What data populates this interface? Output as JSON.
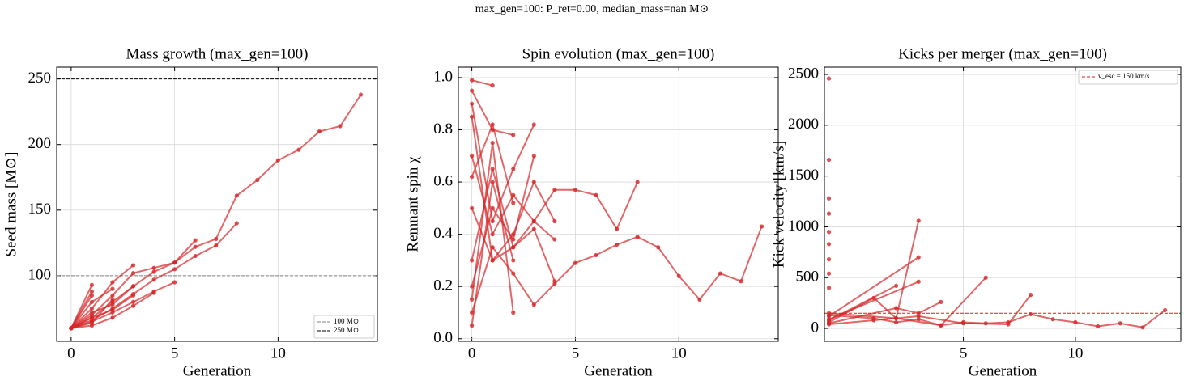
{
  "title": "max_gen=100: P_ret=0.00, median_mass=nan M⊙",
  "chart_data": [
    {
      "type": "line",
      "title": "Mass growth (max_gen=100)",
      "xlabel": "Generation",
      "ylabel": "Seed mass [M⊙]",
      "xlim": [
        -0.7,
        14.8
      ],
      "ylim": [
        50,
        259
      ],
      "xticks": [
        0,
        5,
        10
      ],
      "yticks": [
        100,
        150,
        200,
        250
      ],
      "grid": true,
      "legend": "lower right",
      "hlines": [
        {
          "y": 100,
          "color": "#808080",
          "label": "100 M⊙"
        },
        {
          "y": 250,
          "color": "#000000",
          "label": "250 M⊙"
        }
      ],
      "series": [
        {
          "color": "#d62728",
          "x": [
            0,
            1,
            2,
            3,
            4,
            5,
            6,
            7,
            8,
            9,
            10,
            11,
            12,
            13,
            14
          ],
          "values": [
            60,
            68,
            80,
            92,
            103,
            110,
            122,
            128,
            161,
            173,
            188,
            196,
            210,
            214,
            238
          ]
        },
        {
          "color": "#d62728",
          "x": [
            0,
            1,
            2,
            3,
            4,
            5,
            6,
            7,
            8
          ],
          "values": [
            60,
            66,
            75,
            86,
            97,
            105,
            115,
            123,
            140
          ]
        },
        {
          "color": "#d62728",
          "x": [
            0,
            1
          ],
          "values": [
            60,
            93
          ]
        },
        {
          "color": "#d62728",
          "x": [
            0,
            1
          ],
          "values": [
            60,
            88
          ]
        },
        {
          "color": "#d62728",
          "x": [
            0,
            1,
            2,
            3
          ],
          "values": [
            60,
            75,
            95,
            108
          ]
        },
        {
          "color": "#d62728",
          "x": [
            0,
            1,
            2,
            3,
            4,
            5,
            6
          ],
          "values": [
            60,
            70,
            85,
            102,
            106,
            110,
            127
          ]
        },
        {
          "color": "#d62728",
          "x": [
            0,
            1,
            2,
            3,
            4,
            5
          ],
          "values": [
            60,
            65,
            72,
            80,
            88,
            95
          ]
        },
        {
          "color": "#d62728",
          "x": [
            0,
            1,
            2
          ],
          "values": [
            60,
            80,
            90
          ]
        },
        {
          "color": "#d62728",
          "x": [
            0,
            1
          ],
          "values": [
            60,
            85
          ]
        },
        {
          "color": "#d62728",
          "x": [
            0,
            1,
            2,
            3
          ],
          "values": [
            60,
            72,
            78,
            92
          ]
        },
        {
          "color": "#d62728",
          "x": [
            0,
            1,
            2,
            3,
            4
          ],
          "values": [
            60,
            62,
            68,
            77,
            87
          ]
        },
        {
          "color": "#d62728",
          "x": [
            0,
            1,
            2
          ],
          "values": [
            60,
            64,
            82
          ]
        },
        {
          "color": "#d62728",
          "x": [
            0,
            1,
            2,
            3
          ],
          "values": [
            60,
            68,
            74,
            85
          ]
        }
      ]
    },
    {
      "type": "line",
      "title": "Spin evolution (max_gen=100)",
      "xlabel": "Generation",
      "ylabel": "Remnant spin χ",
      "xlim": [
        -0.65,
        14.8
      ],
      "ylim": [
        -0.01,
        1.04
      ],
      "xticks": [
        0,
        5,
        10
      ],
      "yticks": [
        {
          "value": 0,
          "label": "0.0"
        },
        0.2,
        0.4,
        0.6,
        0.8,
        {
          "value": 1,
          "label": "1.0"
        }
      ],
      "grid": true,
      "series": [
        {
          "color": "#d62728",
          "x": [
            0,
            1,
            2,
            3,
            4,
            5,
            6,
            7,
            8,
            9,
            10,
            11,
            12,
            13,
            14
          ],
          "values": [
            0.1,
            0.35,
            0.25,
            0.13,
            0.21,
            0.29,
            0.32,
            0.36,
            0.39,
            0.35,
            0.24,
            0.15,
            0.25,
            0.22,
            0.43
          ]
        },
        {
          "color": "#d62728",
          "x": [
            0,
            1,
            2,
            3,
            4,
            5,
            6,
            7,
            8
          ],
          "values": [
            0.5,
            0.3,
            0.35,
            0.45,
            0.57,
            0.57,
            0.55,
            0.42,
            0.6
          ]
        },
        {
          "color": "#d62728",
          "x": [
            0,
            1
          ],
          "values": [
            0.99,
            0.97
          ]
        },
        {
          "color": "#d62728",
          "x": [
            0,
            1,
            2
          ],
          "values": [
            0.95,
            0.8,
            0.78
          ]
        },
        {
          "color": "#d62728",
          "x": [
            0,
            1,
            2,
            3
          ],
          "values": [
            0.9,
            0.45,
            0.65,
            0.82
          ]
        },
        {
          "color": "#d62728",
          "x": [
            0,
            1,
            2,
            3
          ],
          "values": [
            0.2,
            0.5,
            0.38,
            0.7
          ]
        },
        {
          "color": "#d62728",
          "x": [
            0,
            1,
            2
          ],
          "values": [
            0.05,
            0.6,
            0.3
          ]
        },
        {
          "color": "#d62728",
          "x": [
            0,
            1,
            2,
            3,
            4
          ],
          "values": [
            0.7,
            0.4,
            0.55,
            0.45,
            0.38
          ]
        },
        {
          "color": "#d62728",
          "x": [
            0,
            1,
            2
          ],
          "values": [
            0.15,
            0.75,
            0.1
          ]
        },
        {
          "color": "#d62728",
          "x": [
            0,
            1,
            2,
            3,
            4
          ],
          "values": [
            0.85,
            0.3,
            0.4,
            0.6,
            0.45
          ]
        },
        {
          "color": "#d62728",
          "x": [
            0,
            1,
            2,
            3,
            4
          ],
          "values": [
            0.3,
            0.65,
            0.35,
            0.42,
            0.22
          ]
        },
        {
          "color": "#d62728",
          "x": [
            0,
            1,
            2
          ],
          "values": [
            0.62,
            0.82,
            0.52
          ]
        }
      ]
    },
    {
      "type": "line",
      "title": "Kicks per merger (max_gen=100)",
      "xlabel": "Generation",
      "ylabel": "Kick velocity [km/s]",
      "xlim": [
        -1.2,
        14.7
      ],
      "ylim": [
        -127,
        2572
      ],
      "xticks": [
        5,
        10
      ],
      "yticks": [
        0,
        500,
        1000,
        1500,
        2000,
        2500
      ],
      "grid": true,
      "legend": "upper right",
      "hlines": [
        {
          "y": 150,
          "color": "#e31a1c",
          "label": "v_esc = 150 km/s"
        }
      ],
      "series": [
        {
          "color": "#d62728",
          "x": [
            -1,
            1,
            2,
            3,
            4,
            5,
            6,
            7,
            8,
            9,
            10,
            11,
            12,
            13,
            14
          ],
          "values": [
            130,
            100,
            60,
            90,
            30,
            60,
            50,
            60,
            140,
            90,
            60,
            20,
            50,
            10,
            180
          ]
        },
        {
          "color": "#d62728",
          "x": [
            -1,
            2
          ],
          "values": [
            80,
            420
          ]
        },
        {
          "color": "#d62728",
          "x": [
            -1,
            1,
            2,
            3
          ],
          "values": [
            60,
            300,
            100,
            1060
          ]
        },
        {
          "color": "#d62728",
          "x": [
            -1,
            2,
            3,
            4
          ],
          "values": [
            50,
            200,
            150,
            260
          ]
        },
        {
          "color": "#d62728",
          "x": [
            -1,
            3
          ],
          "values": [
            120,
            700
          ]
        },
        {
          "color": "#d62728",
          "x": [
            -1,
            3
          ],
          "values": [
            90,
            460
          ]
        },
        {
          "color": "#d62728",
          "x": [
            -1,
            2,
            4,
            6
          ],
          "values": [
            150,
            100,
            30,
            500
          ]
        },
        {
          "color": "#d62728",
          "x": [
            -1,
            1,
            3,
            5,
            7,
            8
          ],
          "values": [
            40,
            80,
            120,
            50,
            40,
            330
          ]
        },
        {
          "color": "#d62728",
          "x": [
            -1
          ],
          "values": [
            2460
          ]
        },
        {
          "color": "#d62728",
          "x": [
            -1
          ],
          "values": [
            1660
          ]
        },
        {
          "color": "#d62728",
          "x": [
            -1
          ],
          "values": [
            1280
          ]
        },
        {
          "color": "#d62728",
          "x": [
            -1
          ],
          "values": [
            1130
          ]
        },
        {
          "color": "#d62728",
          "x": [
            -1
          ],
          "values": [
            950
          ]
        },
        {
          "color": "#d62728",
          "x": [
            -1
          ],
          "values": [
            830
          ]
        },
        {
          "color": "#d62728",
          "x": [
            -1
          ],
          "values": [
            680
          ]
        },
        {
          "color": "#d62728",
          "x": [
            -1
          ],
          "values": [
            540
          ]
        },
        {
          "color": "#d62728",
          "x": [
            -1
          ],
          "values": [
            400
          ]
        }
      ]
    }
  ]
}
